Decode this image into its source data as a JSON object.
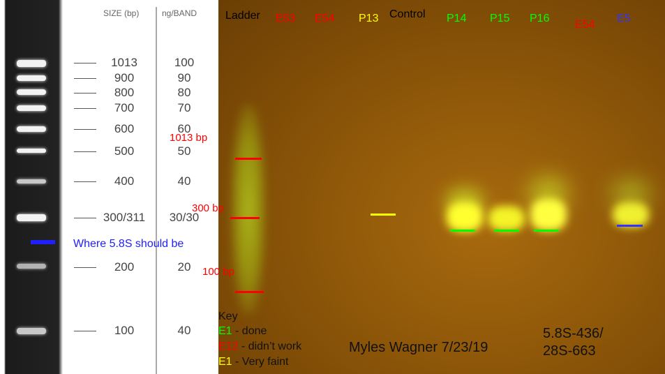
{
  "legend": {
    "size_header": "SIZE (bp)",
    "ng_header": "ng/BAND",
    "rows": [
      {
        "size": "1013",
        "ng": "100"
      },
      {
        "size": "900",
        "ng": "90"
      },
      {
        "size": "800",
        "ng": "80"
      },
      {
        "size": "700",
        "ng": "70"
      },
      {
        "size": "600",
        "ng": "60"
      },
      {
        "size": "500",
        "ng": "50"
      },
      {
        "size": "400",
        "ng": "40"
      },
      {
        "size": "300/311",
        "ng": "30/30"
      },
      {
        "size": "200",
        "ng": "20"
      },
      {
        "size": "100",
        "ng": "40"
      }
    ],
    "annotation": "Where 5.8S should be"
  },
  "gel": {
    "lanes": [
      {
        "label": "Ladder",
        "color": "#000000"
      },
      {
        "label": "E53",
        "color": "#ff0000"
      },
      {
        "label": "E54",
        "color": "#ff0000"
      },
      {
        "label": "P13",
        "color": "#ffff00"
      },
      {
        "label": "Control",
        "color": "#000000"
      },
      {
        "label": "P14",
        "color": "#00ff00"
      },
      {
        "label": "P15",
        "color": "#00ff00"
      },
      {
        "label": "P16",
        "color": "#00ff00"
      },
      {
        "label": "E54",
        "color": "#ff0000"
      },
      {
        "label": "E5",
        "color": "#3333ff"
      }
    ],
    "size_markers": [
      "1013 bp",
      "300 bp",
      "100 bp"
    ],
    "key": {
      "title": "Key",
      "items": [
        {
          "code": "E1",
          "text": " - done",
          "color": "#00ff00"
        },
        {
          "code": "E12",
          "text": " - didn’t work",
          "color": "#ff0000"
        },
        {
          "code": "E1",
          "text": " - Very faint",
          "color": "#ffff00"
        }
      ]
    },
    "author": "Myles Wagner 7/23/19",
    "primers": [
      "5.8S-436/",
      "28S-663"
    ]
  }
}
